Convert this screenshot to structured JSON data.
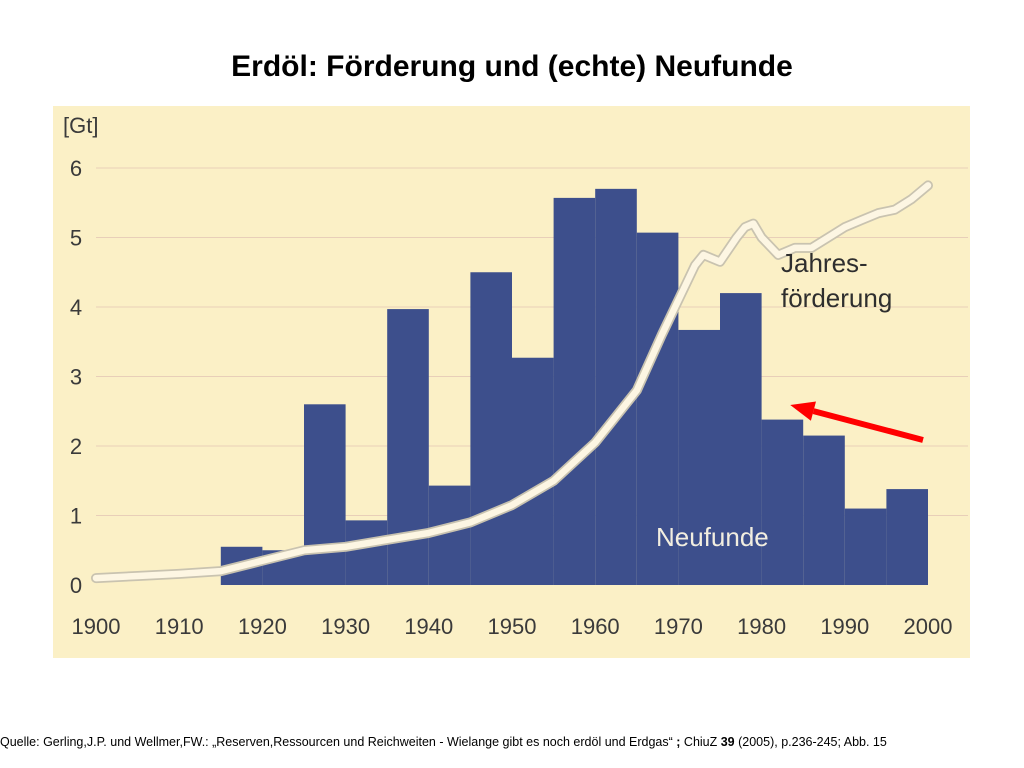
{
  "title": "Erdöl: Förderung und (echte) Neufunde",
  "source": {
    "prefix": "Quelle: Gerling,J.P. und Wellmer,FW.: „Reserven,Ressourcen und Reichweiten - Wielange gibt es noch erdöl und Erdgas“ ",
    "semicolon": ";",
    "journal": " ChiuZ ",
    "volume": "39",
    "suffix": " (2005), p.236-245; Abb. 15"
  },
  "colors": {
    "bars": "#3d4f8c",
    "line": "#fdf6e3",
    "panel": "#fbf0c6",
    "arrow": "#ff0000"
  },
  "chart_data": {
    "type": "bar",
    "y_unit": "[Gt]",
    "xlim": [
      1900,
      2000
    ],
    "ylim": [
      0,
      6
    ],
    "x_ticks": [
      "1900",
      "1910",
      "1920",
      "1930",
      "1940",
      "1950",
      "1960",
      "1970",
      "1980",
      "1990",
      "2000"
    ],
    "y_ticks": [
      "0",
      "1",
      "2",
      "3",
      "4",
      "5",
      "6"
    ],
    "grid": true,
    "series": [
      {
        "name": "Neufunde",
        "type": "bar",
        "bars": [
          {
            "start": 1915,
            "end": 1920,
            "value": 0.55
          },
          {
            "start": 1920,
            "end": 1925,
            "value": 0.5
          },
          {
            "start": 1925,
            "end": 1930,
            "value": 2.6
          },
          {
            "start": 1930,
            "end": 1935,
            "value": 0.93
          },
          {
            "start": 1935,
            "end": 1940,
            "value": 3.97
          },
          {
            "start": 1940,
            "end": 1945,
            "value": 1.43
          },
          {
            "start": 1945,
            "end": 1950,
            "value": 4.5
          },
          {
            "start": 1950,
            "end": 1955,
            "value": 3.27
          },
          {
            "start": 1955,
            "end": 1960,
            "value": 5.57
          },
          {
            "start": 1960,
            "end": 1965,
            "value": 5.7
          },
          {
            "start": 1965,
            "end": 1970,
            "value": 5.07
          },
          {
            "start": 1970,
            "end": 1975,
            "value": 3.67
          },
          {
            "start": 1975,
            "end": 1980,
            "value": 4.2
          },
          {
            "start": 1980,
            "end": 1985,
            "value": 2.38
          },
          {
            "start": 1985,
            "end": 1990,
            "value": 2.15
          },
          {
            "start": 1990,
            "end": 1995,
            "value": 1.1
          },
          {
            "start": 1995,
            "end": 2000,
            "value": 1.38
          }
        ]
      },
      {
        "name": "Jahres-förderung",
        "name_lines": [
          "Jahres-",
          "förderung"
        ],
        "type": "line",
        "x": [
          1900,
          1905,
          1910,
          1915,
          1920,
          1925,
          1930,
          1935,
          1940,
          1945,
          1950,
          1955,
          1960,
          1965,
          1968,
          1970,
          1972,
          1973,
          1975,
          1977,
          1978,
          1979,
          1980,
          1982,
          1984,
          1986,
          1988,
          1990,
          1992,
          1994,
          1996,
          1998,
          2000
        ],
        "y": [
          0.1,
          0.13,
          0.16,
          0.2,
          0.35,
          0.5,
          0.55,
          0.65,
          0.75,
          0.9,
          1.15,
          1.5,
          2.05,
          2.8,
          3.6,
          4.1,
          4.6,
          4.75,
          4.65,
          5.0,
          5.15,
          5.2,
          5.0,
          4.75,
          4.85,
          4.85,
          5.0,
          5.15,
          5.25,
          5.35,
          5.4,
          5.55,
          5.75
        ]
      }
    ],
    "annotation": {
      "type": "arrow",
      "points_to": "Jahres-förderung",
      "at_x": 1982
    }
  }
}
